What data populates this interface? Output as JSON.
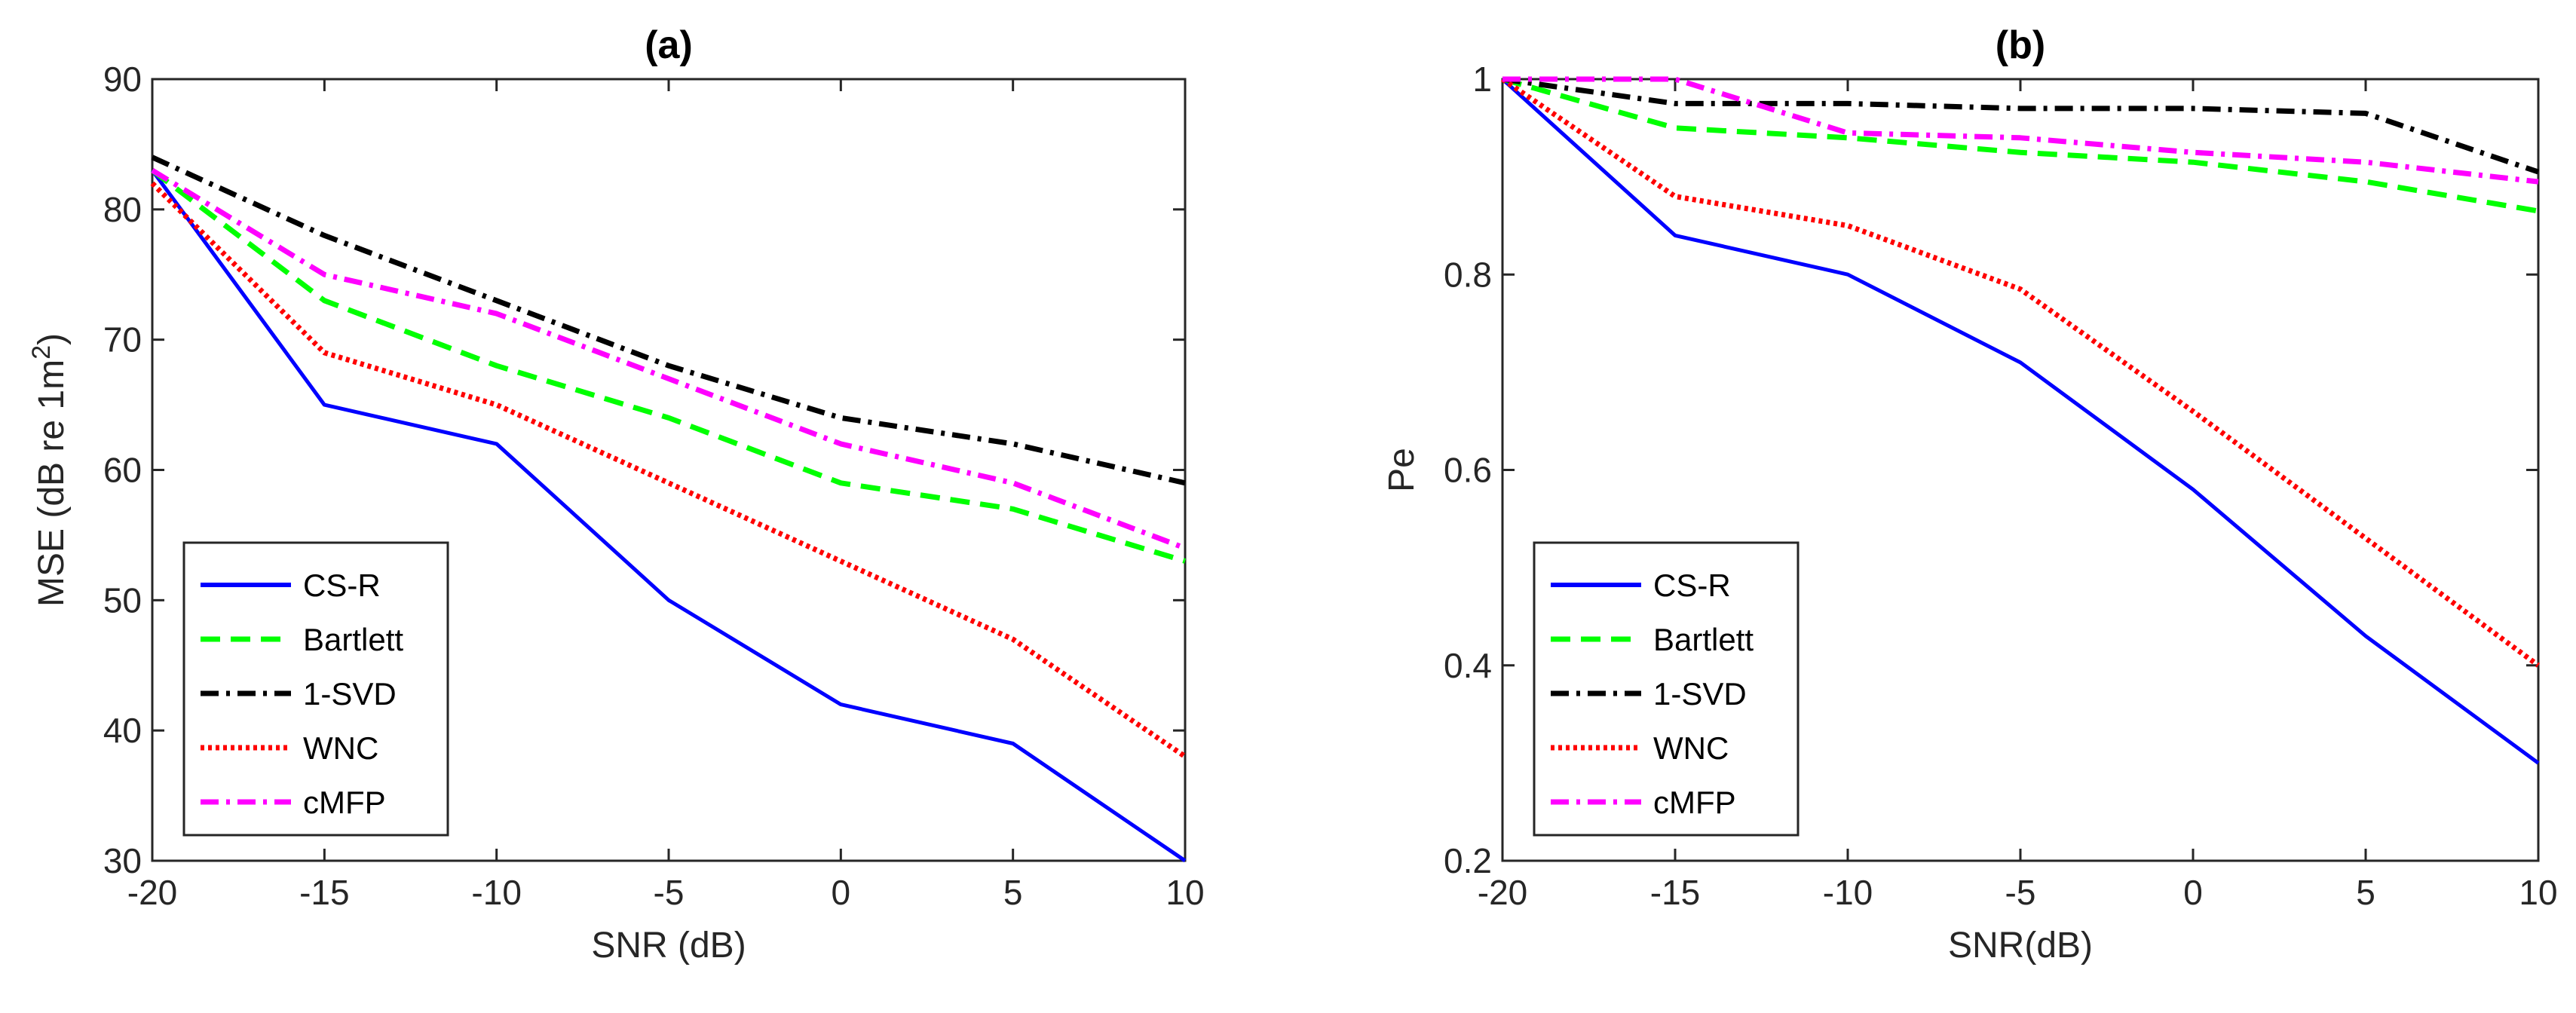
{
  "chart_data": [
    {
      "type": "line",
      "title": "(a)",
      "xlabel": "SNR (dB)",
      "ylabel": "MSE (dB re 1m",
      "ylabel_sup": "2",
      "ylabel_tail": ")",
      "xlim": [
        -20,
        10
      ],
      "ylim": [
        30,
        90
      ],
      "xticks": [
        -20,
        -15,
        -10,
        -5,
        0,
        5,
        10
      ],
      "yticks": [
        30,
        40,
        50,
        60,
        70,
        80,
        90
      ],
      "xtick_labels": [
        "-20",
        "-15",
        "-10",
        "-5",
        "0",
        "5",
        "10"
      ],
      "ytick_labels": [
        "30",
        "40",
        "50",
        "60",
        "70",
        "80",
        "90"
      ],
      "grid": false,
      "legend": "bottom-left",
      "x": [
        -20,
        -15,
        -10,
        -5,
        0,
        5,
        10
      ],
      "series": [
        {
          "name": "CS-R",
          "values": [
            83,
            65,
            62,
            50,
            42,
            39,
            30
          ]
        },
        {
          "name": "Bartlett",
          "values": [
            83,
            73,
            68,
            64,
            59,
            57,
            53
          ]
        },
        {
          "name": "1-SVD",
          "values": [
            84,
            78,
            73,
            68,
            64,
            62,
            59
          ]
        },
        {
          "name": "WNC",
          "values": [
            82,
            69,
            65,
            59,
            53,
            47,
            38
          ]
        },
        {
          "name": "cMFP",
          "values": [
            83,
            75,
            72,
            67,
            62,
            59,
            54
          ]
        }
      ]
    },
    {
      "type": "line",
      "title": "(b)",
      "xlabel": "SNR(dB)",
      "ylabel": "Pe",
      "xlim": [
        -20,
        10
      ],
      "ylim": [
        0.2,
        1
      ],
      "xticks": [
        -20,
        -15,
        -10,
        -5,
        0,
        5,
        10
      ],
      "yticks": [
        0.2,
        0.4,
        0.6,
        0.8,
        1
      ],
      "xtick_labels": [
        "-20",
        "-15",
        "-10",
        "-5",
        "0",
        "5",
        "10"
      ],
      "ytick_labels": [
        "0.2",
        "0.4",
        "0.6",
        "0.8",
        "1"
      ],
      "grid": false,
      "legend": "bottom-left",
      "x": [
        -20,
        -15,
        -10,
        -5,
        0,
        5,
        10
      ],
      "series": [
        {
          "name": "CS-R",
          "values": [
            1,
            0.84,
            0.8,
            0.71,
            0.58,
            0.43,
            0.3
          ]
        },
        {
          "name": "Bartlett",
          "values": [
            1,
            0.95,
            0.94,
            0.925,
            0.915,
            0.895,
            0.865
          ]
        },
        {
          "name": "1-SVD",
          "values": [
            1,
            0.975,
            0.975,
            0.97,
            0.97,
            0.965,
            0.905
          ]
        },
        {
          "name": "WNC",
          "values": [
            1,
            0.88,
            0.85,
            0.785,
            0.66,
            0.53,
            0.4
          ]
        },
        {
          "name": "cMFP",
          "values": [
            1,
            1,
            0.945,
            0.94,
            0.925,
            0.915,
            0.895
          ]
        }
      ]
    }
  ],
  "series_styles": [
    {
      "name": "CS-R",
      "color": "#0000ff",
      "dash": "solid"
    },
    {
      "name": "Bartlett",
      "color": "#00ff00",
      "dash": "dashed"
    },
    {
      "name": "1-SVD",
      "color": "#000000",
      "dash": "dashdot"
    },
    {
      "name": "WNC",
      "color": "#ff0000",
      "dash": "dotted"
    },
    {
      "name": "cMFP",
      "color": "#ff00ff",
      "dash": "dashdot"
    }
  ]
}
